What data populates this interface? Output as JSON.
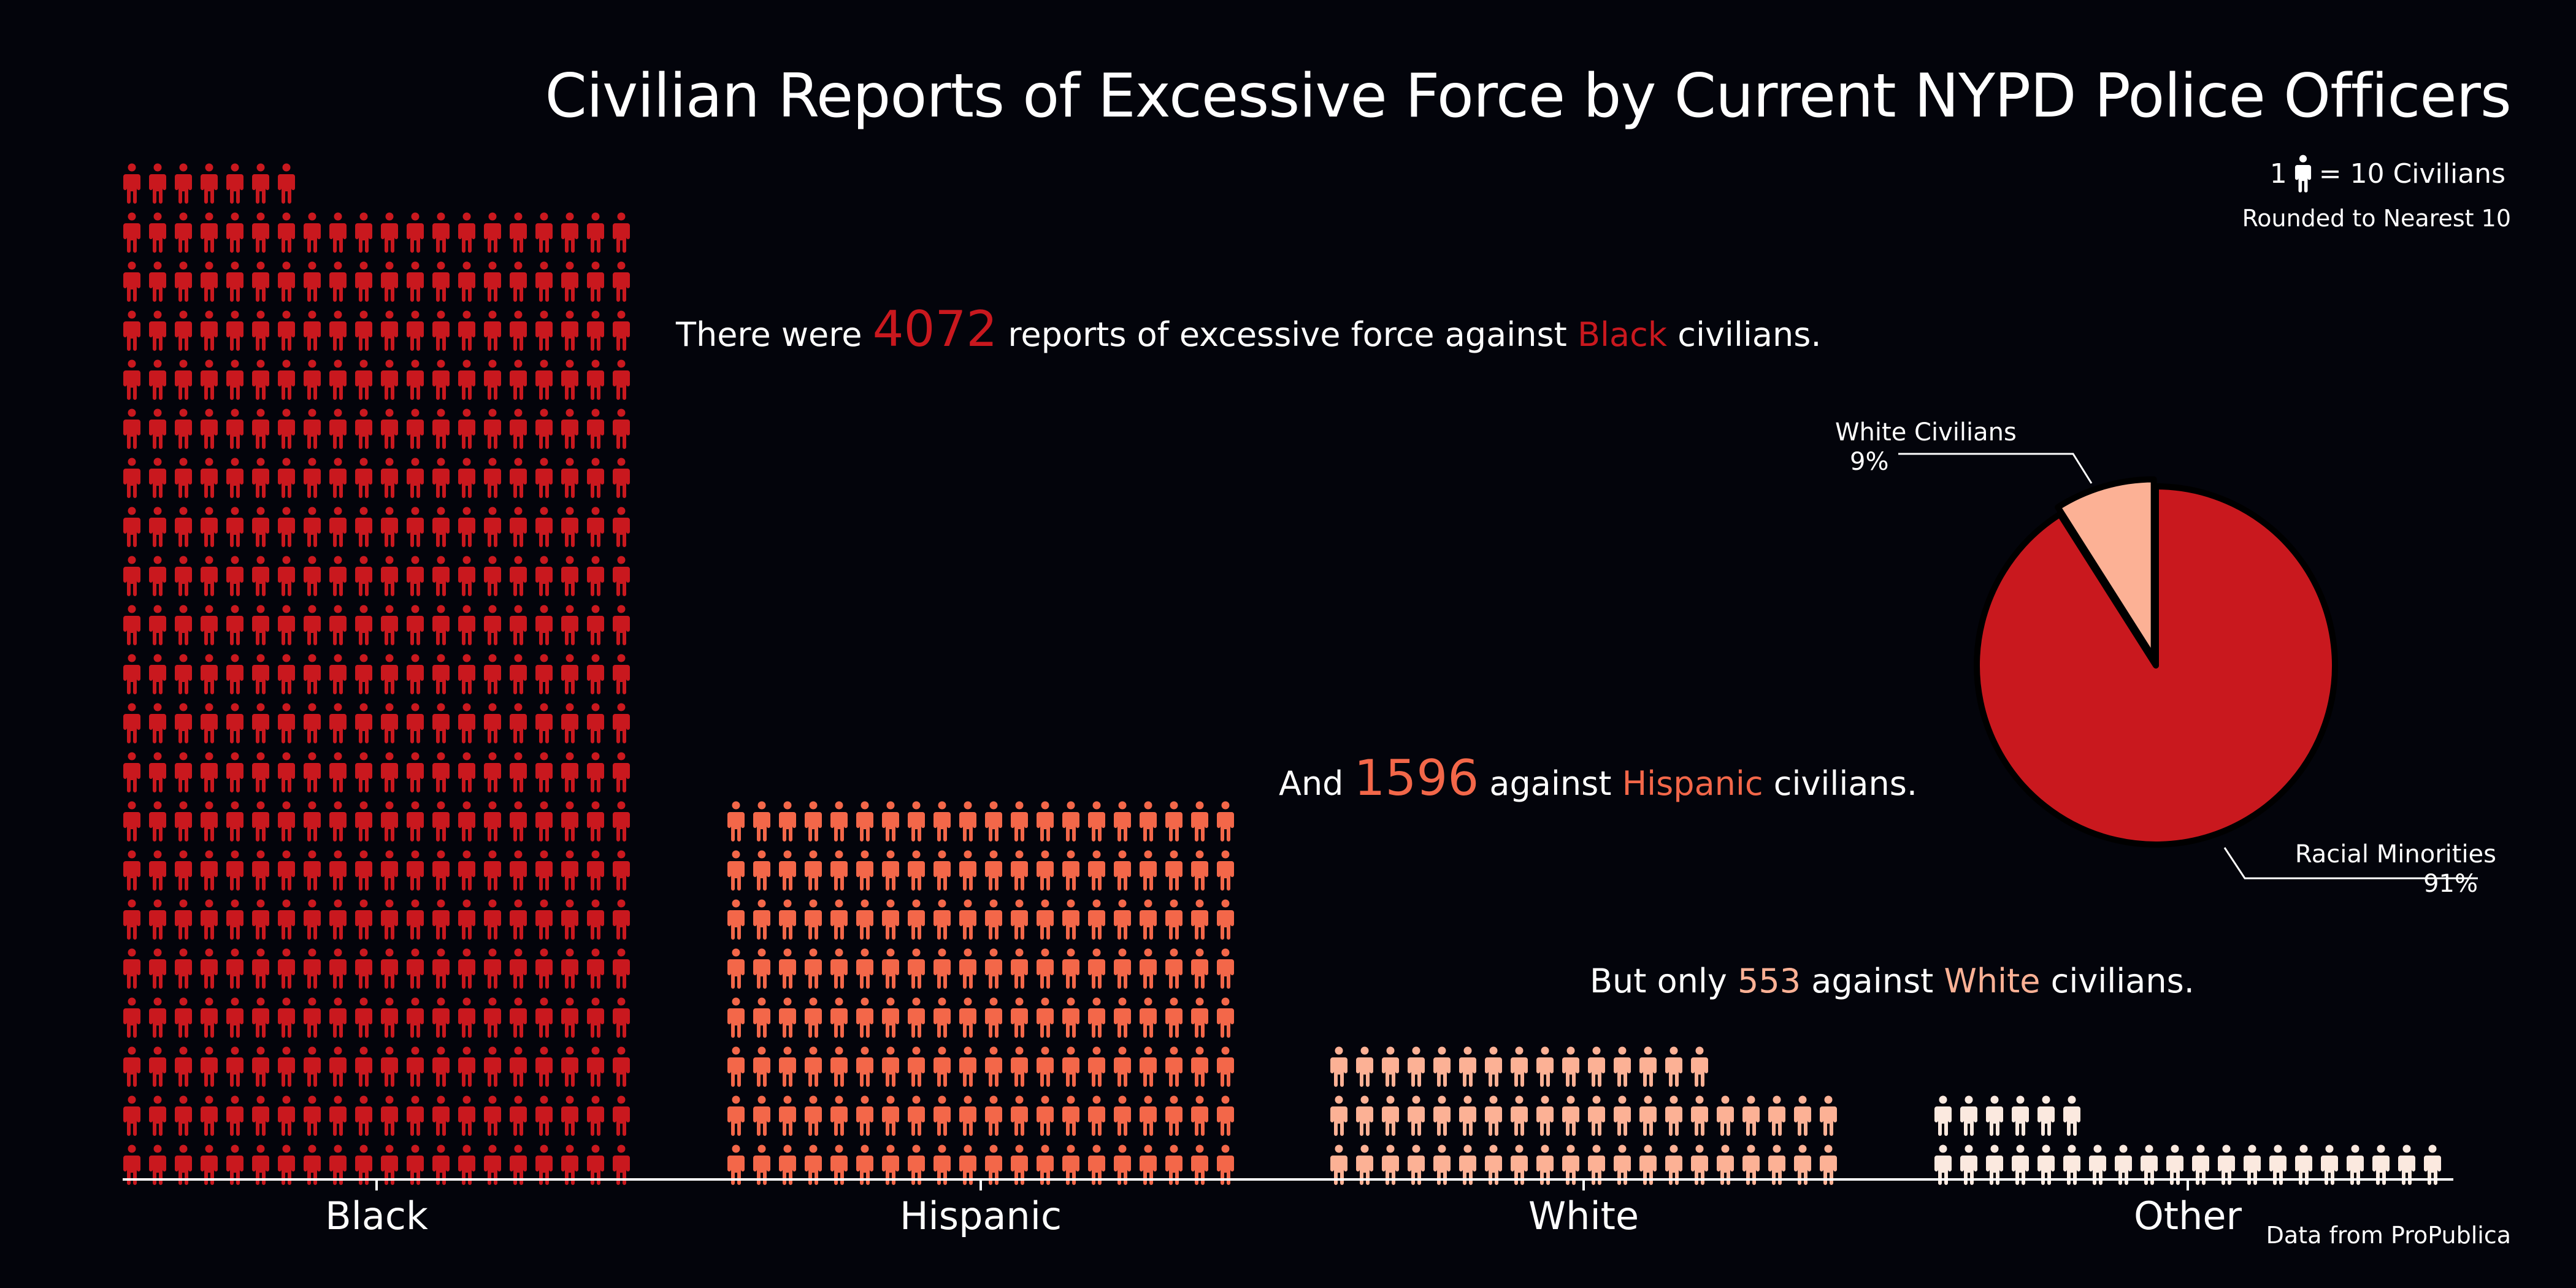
{
  "title": "Civilian Reports of Excessive Force by Current NYPD Police Officers",
  "legend": {
    "prefix": "1",
    "equals_text": "= 10 Civilians",
    "note": "Rounded to Nearest 10"
  },
  "annotations": {
    "black": {
      "pre": "There were",
      "number": "4072",
      "mid": "reports of excessive force against",
      "group": "Black",
      "post": "civilians."
    },
    "hispanic": {
      "pre": "And",
      "number": "1596",
      "mid": "against",
      "group": "Hispanic",
      "post": "civilians."
    },
    "white": {
      "pre": "But only",
      "number": "553",
      "mid": "against",
      "group": "White",
      "post": "civilians."
    }
  },
  "source": "Data from ProPublica",
  "colors": {
    "background": "#03040b",
    "black": "#c9181e",
    "hispanic": "#f36749",
    "white": "#fcb195",
    "other": "#fbe9df",
    "axis": "#ffffff"
  },
  "icon": "person-icon",
  "chart_data": [
    {
      "type": "bar",
      "style": "pictograph",
      "unit": "1 icon = 10 civilians",
      "categories": [
        "Black",
        "Hispanic",
        "White",
        "Other"
      ],
      "values": [
        4072,
        1596,
        553,
        260
      ],
      "icons_per_row": 20
    },
    {
      "type": "pie",
      "slices": [
        {
          "label": "White Civilians",
          "value": 9,
          "value_label": "9%"
        },
        {
          "label": "Racial Minorities",
          "value": 91,
          "value_label": "91%"
        }
      ]
    }
  ]
}
